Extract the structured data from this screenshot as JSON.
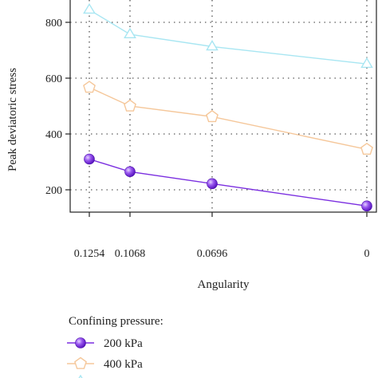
{
  "chart_data": {
    "type": "line",
    "xlabel": "Angularity",
    "ylabel": "Peak deviatoric stress",
    "x": [
      0.1254,
      0.1068,
      0.0696,
      0
    ],
    "x_tick_labels": [
      "0.1254",
      "0.1068",
      "0.0696",
      "0"
    ],
    "x_reversed": true,
    "ylim": [
      120,
      880
    ],
    "y_ticks": [
      200,
      400,
      600,
      800
    ],
    "grid": "dotted vertical and horizontal",
    "legend": {
      "title": "Confining pressure:",
      "placement": "bottom",
      "visible_labels": [
        "200 kPa",
        "400 kPa"
      ]
    },
    "series": [
      {
        "name": "200 kPa",
        "values": [
          310,
          265,
          222,
          142
        ],
        "color": "#7b2fe0",
        "marker": "sphere"
      },
      {
        "name": "400 kPa",
        "values": [
          567,
          500,
          462,
          345
        ],
        "color": "#f5c79a",
        "marker": "pentagon"
      },
      {
        "values": [
          845,
          757,
          713,
          651
        ],
        "color": "#a8e6f2",
        "marker": "triangle"
      }
    ]
  }
}
